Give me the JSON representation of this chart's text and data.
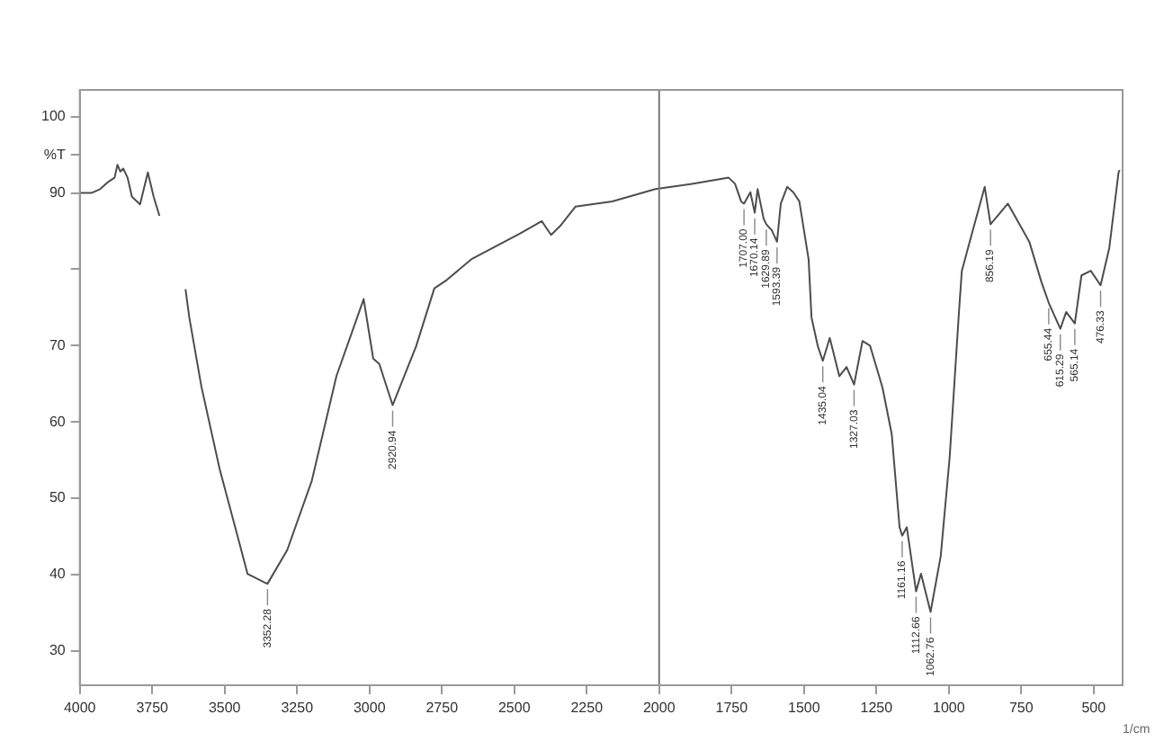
{
  "chart_data": {
    "type": "line",
    "xlabel": "1/cm",
    "x": [
      4000,
      3960,
      3930,
      3900,
      3880,
      3870,
      3860,
      3850,
      3835,
      3820,
      3792,
      3765,
      3745,
      3725,
      3680,
      3635,
      3622,
      3580,
      3517,
      3453,
      3421,
      3358,
      3352,
      3284,
      3199,
      3114,
      3020,
      2987,
      2966,
      2920,
      2839,
      2776,
      2733,
      2649,
      2480,
      2405,
      2373,
      2341,
      2289,
      2162,
      2013,
      1887,
      1760,
      1738,
      1717,
      1707,
      1685,
      1670,
      1660,
      1639,
      1630,
      1611,
      1593,
      1580,
      1558,
      1537,
      1516,
      1484,
      1474,
      1452,
      1435,
      1411,
      1378,
      1353,
      1327,
      1298,
      1272,
      1229,
      1197,
      1170,
      1161,
      1145,
      1113,
      1096,
      1063,
      1028,
      997,
      965,
      955,
      923,
      876,
      856,
      796,
      722,
      680,
      655,
      615,
      595,
      565,
      542,
      510,
      476,
      446,
      414,
      410
    ],
    "series": [
      {
        "color": "#4d4d4d",
        "values": [
          90,
          90,
          90.5,
          91.5,
          92,
          93.7,
          92.8,
          93.2,
          92,
          89.5,
          88.5,
          92.7,
          89.5,
          87,
          null,
          77.4,
          73.7,
          64.6,
          53.8,
          44.7,
          40.1,
          38.9,
          38.8,
          43.2,
          52.3,
          66,
          76.1,
          68.3,
          67.6,
          62.2,
          69.9,
          77.5,
          78.6,
          81.3,
          84.7,
          86.3,
          84.5,
          85.7,
          88.2,
          88.9,
          90.5,
          91.2,
          92,
          91.2,
          88.9,
          88.6,
          90.1,
          87.4,
          90.5,
          86.6,
          85.9,
          85.1,
          83.6,
          88.6,
          90.8,
          90.1,
          88.9,
          81.3,
          73.7,
          69.9,
          68,
          71,
          66,
          67.2,
          64.9,
          70.6,
          70,
          64.5,
          58.4,
          46.2,
          45.1,
          46.2,
          37.8,
          40.1,
          35.1,
          42.4,
          55.4,
          74.4,
          79.8,
          84.3,
          90.8,
          85.9,
          88.6,
          83.6,
          78.3,
          75.6,
          72.2,
          74.4,
          72.9,
          79.2,
          79.8,
          77.9,
          82.8,
          92.7,
          93
        ]
      }
    ],
    "xlim": [
      4000,
      400
    ],
    "xticks": [
      4000,
      3750,
      3500,
      3250,
      3000,
      2750,
      2500,
      2250,
      2000,
      1750,
      1500,
      1250,
      1000,
      750,
      500
    ],
    "ylim": [
      25.5,
      103.5
    ],
    "yticks": [
      30,
      40,
      50,
      60,
      70,
      {
        "value": 80,
        "label": null
      },
      90,
      {
        "value": 95,
        "label": "%T"
      },
      100
    ],
    "grid": false,
    "legend": false,
    "ref_lines": [
      {
        "axis": "x",
        "value": 2000,
        "color": "#777777"
      }
    ],
    "annotations": [
      {
        "text": "3352.28",
        "x": 3352,
        "y": 38.8
      },
      {
        "text": "2920.94",
        "x": 2920,
        "y": 62.2
      },
      {
        "text": "1707.00",
        "x": 1707,
        "y": 88.6
      },
      {
        "text": "1670.14",
        "x": 1670,
        "y": 87.4
      },
      {
        "text": "1629.89",
        "x": 1630,
        "y": 85.9
      },
      {
        "text": "1593.39",
        "x": 1593,
        "y": 83.6
      },
      {
        "text": "1435.04",
        "x": 1435,
        "y": 68
      },
      {
        "text": "1327.03",
        "x": 1327,
        "y": 64.9
      },
      {
        "text": "1161.16",
        "x": 1161,
        "y": 45.1
      },
      {
        "text": "1112.66",
        "x": 1113,
        "y": 37.8
      },
      {
        "text": "1062.76",
        "x": 1063,
        "y": 35.1
      },
      {
        "text": "856.19",
        "x": 856,
        "y": 85.9
      },
      {
        "text": "655.44",
        "x": 655,
        "y": 75.6
      },
      {
        "text": "615.29",
        "x": 615,
        "y": 72.2
      },
      {
        "text": "565.14",
        "x": 565,
        "y": 72.9
      },
      {
        "text": "476.33",
        "x": 476,
        "y": 77.9
      }
    ]
  }
}
